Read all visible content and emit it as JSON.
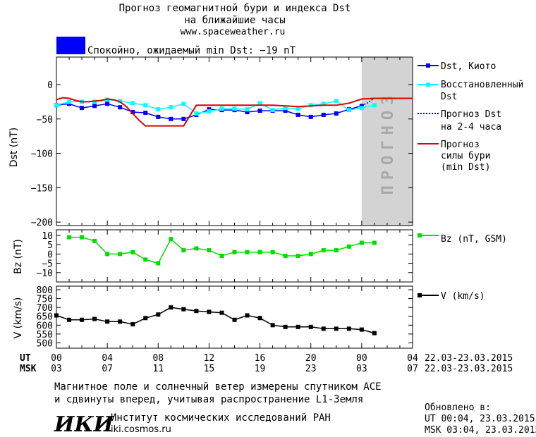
{
  "header": {
    "title_line1": "Прогноз геомагнитной бури и индекса Dst",
    "title_line2": "на ближайшие часы",
    "url": "www.spaceweather.ru",
    "status_color": "#0000ff",
    "status_text": "Спокойно, ожидаемый min Dst: −19 nT"
  },
  "legend": {
    "dst_kyoto": "Dst, Киото",
    "restored_1": "Восстановленный",
    "restored_2": "Dst",
    "forecast_1": "Прогноз Dst",
    "forecast_2": "на 2-4 часа",
    "storm_1": "Прогноз",
    "storm_2": "силы бури",
    "storm_3": "(min Dst)",
    "bz": "Bz (nT, GSM)",
    "v": "V (km/s)"
  },
  "forecast_band_text": "ПРОГНОЗ",
  "time_axis": {
    "ut_label": "UT",
    "msk_label": "MSK",
    "ut_ticks": [
      "00",
      "04",
      "08",
      "12",
      "16",
      "20",
      "00",
      "04"
    ],
    "msk_ticks": [
      "03",
      "07",
      "11",
      "15",
      "19",
      "23",
      "03",
      "07"
    ],
    "ut_range": "22.03-23.03.2015",
    "msk_range": "22.03-23.03.2015"
  },
  "footer": {
    "note_line1": "Магнитное поле и солнечный ветер измерены спутником ACE",
    "note_line2": "и сдвинуты вперед, учитывая распространение L1-Земля",
    "logo_text": "ИКИ",
    "institute": "Институт космических исследований РАН",
    "institute_url": "iki.cosmos.ru",
    "updated_label": "Обновлено в:",
    "updated_ut": "UT  00:04, 23.03.2015",
    "updated_msk": "MSK 03:04, 23.03.2015"
  },
  "chart_data": [
    {
      "type": "line",
      "ylabel": "Dst (nT)",
      "xlim": [
        0,
        28
      ],
      "ylim": [
        -205,
        40
      ],
      "yticks": [
        0,
        -50,
        -100,
        -150,
        -200
      ],
      "forecast_band_start": 24,
      "series": [
        {
          "name": "Dst, Киото",
          "color": "#0000ff",
          "x": [
            0,
            1,
            2,
            3,
            4,
            5,
            6,
            7,
            8,
            9,
            10,
            11,
            12,
            13,
            14,
            15,
            16,
            17,
            18,
            19,
            20,
            21,
            22,
            23,
            24
          ],
          "y": [
            -30,
            -28,
            -34,
            -31,
            -28,
            -33,
            -40,
            -41,
            -47,
            -50,
            -50,
            -44,
            -36,
            -37,
            -37,
            -40,
            -38,
            -38,
            -38,
            -44,
            -47,
            -44,
            -42,
            -36,
            -31
          ]
        },
        {
          "name": "Восстановленный Dst",
          "color": "#00ffff",
          "x": [
            0,
            1,
            2,
            3,
            4,
            5,
            6,
            7,
            8,
            9,
            10,
            11,
            12,
            13,
            14,
            15,
            16,
            17,
            18,
            19,
            20,
            21,
            22,
            23,
            24,
            25
          ],
          "y": [
            -30,
            -25,
            -25,
            -25,
            -22,
            -24,
            -27,
            -30,
            -36,
            -33,
            -28,
            -42,
            -39,
            -35,
            -35,
            -36,
            -27,
            -37,
            -34,
            -35,
            -30,
            -28,
            -24,
            -37,
            -34,
            -30
          ]
        },
        {
          "name": "Прогноз Dst на 2-4 часа",
          "color": "#0000aa",
          "x": [
            24,
            24.5,
            25
          ],
          "y": [
            -31,
            -26,
            -20
          ]
        },
        {
          "name": "Прогноз силы бури (min Dst)",
          "color": "#dd0000",
          "x": [
            0,
            0.5,
            1,
            1.5,
            2,
            2.5,
            3,
            3.5,
            4,
            4.5,
            5,
            5.5,
            6,
            6.5,
            7,
            8,
            9,
            10,
            10.5,
            11,
            11.5,
            12,
            13,
            14,
            15,
            16,
            17,
            18,
            19,
            20,
            21,
            22,
            23,
            23.5,
            24,
            25,
            26,
            27,
            28
          ],
          "y": [
            -22,
            -19,
            -20,
            -23,
            -25,
            -25,
            -24,
            -23,
            -21,
            -22,
            -25,
            -32,
            -42,
            -52,
            -60,
            -60,
            -60,
            -60,
            -45,
            -30,
            -30,
            -30,
            -30,
            -30,
            -30,
            -30,
            -30,
            -31,
            -32,
            -31,
            -30,
            -30,
            -27,
            -24,
            -21,
            -20,
            -20,
            -20,
            -20
          ]
        }
      ]
    },
    {
      "type": "line",
      "ylabel": "Bz (nT)",
      "xlim": [
        0,
        28
      ],
      "ylim": [
        -15,
        13
      ],
      "yticks": [
        10,
        5,
        0,
        -5,
        -10
      ],
      "series": [
        {
          "name": "Bz (nT, GSM)",
          "color": "#00dd00",
          "x": [
            1,
            2,
            3,
            4,
            5,
            6,
            7,
            8,
            9,
            10,
            11,
            12,
            13,
            14,
            15,
            16,
            17,
            18,
            19,
            20,
            21,
            22,
            23,
            24,
            25
          ],
          "y": [
            9,
            9,
            7,
            0,
            0,
            1,
            -3,
            -5,
            8,
            2,
            3,
            2,
            -1,
            1,
            1,
            1,
            1,
            -1,
            -1,
            0,
            2,
            2,
            4,
            6,
            6
          ]
        }
      ]
    },
    {
      "type": "line",
      "ylabel": "V (km/s)",
      "xlim": [
        0,
        28
      ],
      "ylim": [
        470,
        820
      ],
      "yticks": [
        800,
        750,
        700,
        650,
        600,
        550,
        500
      ],
      "series": [
        {
          "name": "V (km/s)",
          "color": "#000000",
          "x": [
            0,
            1,
            2,
            3,
            4,
            5,
            6,
            7,
            8,
            9,
            10,
            11,
            12,
            13,
            14,
            15,
            16,
            17,
            18,
            19,
            20,
            21,
            22,
            23,
            24,
            25
          ],
          "y": [
            655,
            630,
            630,
            635,
            620,
            620,
            605,
            640,
            660,
            700,
            690,
            680,
            675,
            670,
            630,
            655,
            640,
            600,
            590,
            590,
            590,
            580,
            580,
            580,
            575,
            555
          ]
        }
      ]
    }
  ]
}
